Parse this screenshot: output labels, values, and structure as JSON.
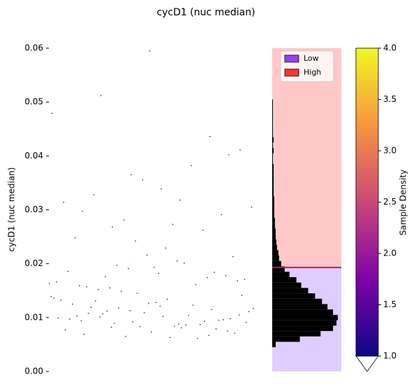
{
  "chart_data": [
    {
      "type": "strip",
      "title": "cycD1 (nuc median)",
      "ylabel": "cycD1 (nuc median)",
      "color": "#1a0a8c",
      "ylim": [
        0,
        0.06
      ],
      "yticks": [
        {
          "value": 0,
          "label": "0.00"
        },
        0.01,
        0.02,
        0.03,
        0.04,
        0.05,
        0.06
      ],
      "values": [
        0.0082,
        0.0105,
        0.0121,
        0.0094,
        0.0067,
        0.0113,
        0.0139,
        0.0088,
        0.0101,
        0.0075,
        0.0126,
        0.0097,
        0.0061,
        0.0118,
        0.0091,
        0.0134,
        0.0108,
        0.0079,
        0.0145,
        0.0099,
        0.0086,
        0.0112,
        0.0071,
        0.0128,
        0.0103,
        0.0093,
        0.0065,
        0.0117,
        0.0084,
        0.0131,
        0.0096,
        0.0109,
        0.0077,
        0.0123,
        0.0089,
        0.0141,
        0.0102,
        0.0069,
        0.0115,
        0.0092,
        0.0136,
        0.0081,
        0.0107,
        0.0098,
        0.0073,
        0.0125,
        0.0087,
        0.0149,
        0.0111,
        0.0063,
        0.0119,
        0.0095,
        0.0083,
        0.0132,
        0.0104,
        0.0155,
        0.0168,
        0.0182,
        0.0159,
        0.0174,
        0.0191,
        0.0163,
        0.0205,
        0.0152,
        0.0178,
        0.0216,
        0.0186,
        0.0161,
        0.0197,
        0.0171,
        0.0229,
        0.0157,
        0.0184,
        0.0242,
        0.0166,
        0.0201,
        0.0176,
        0.0213,
        0.0193,
        0.0248,
        0.0262,
        0.0281,
        0.0305,
        0.0273,
        0.0328,
        0.0291,
        0.0356,
        0.0314,
        0.0382,
        0.0268,
        0.0411,
        0.0339,
        0.0297,
        0.0436,
        0.0365,
        0.0479,
        0.0318,
        0.0512,
        0.0402,
        0.0595
      ]
    },
    {
      "type": "histogram",
      "color": "#000000",
      "xlim": [
        0,
        100
      ],
      "ylim": [
        0,
        0.06
      ],
      "threshold": 0.0193,
      "threshold_color": "#c8106e",
      "bins": [
        0.0045,
        0.0055,
        0.0065,
        0.0075,
        0.0085,
        0.0095,
        0.0105,
        0.0115,
        0.0125,
        0.0135,
        0.0145,
        0.0155,
        0.0165,
        0.0175,
        0.0185,
        0.0195,
        0.0205,
        0.0215,
        0.0225,
        0.0235,
        0.0245,
        0.0255,
        0.0265,
        0.0275,
        0.0285,
        0.0295,
        0.0305,
        0.0315,
        0.0325,
        0.0335,
        0.0345,
        0.0355,
        0.0365,
        0.0375,
        0.0385,
        0.0395,
        0.0405,
        0.0415,
        0.0425,
        0.0435,
        0.0445,
        0.0455,
        0.0465,
        0.0475,
        0.0485,
        0.0495,
        0.0505
      ],
      "counts": [
        5,
        40,
        70,
        88,
        93,
        95,
        88,
        80,
        72,
        62,
        52,
        42,
        35,
        25,
        18,
        13,
        10,
        9,
        7,
        6,
        5,
        5,
        4,
        4,
        3,
        3,
        3,
        3,
        2,
        2,
        2,
        2,
        2,
        2,
        1,
        1,
        2,
        1,
        2,
        1,
        1,
        1,
        1,
        1,
        1,
        1
      ],
      "legend": "upper right",
      "regions": [
        {
          "name": "Low",
          "color": "#9b3dff",
          "fill": "#e0ccff"
        },
        {
          "name": "High",
          "color": "#ff3333",
          "fill": "#ffc8c8"
        }
      ]
    },
    {
      "type": "colorbar",
      "label": "Sample Density",
      "colormap": "plasma",
      "extend": "min",
      "ylim": [
        1,
        4
      ],
      "yticks": [
        {
          "value": 1,
          "label": "1.0"
        },
        1.5,
        {
          "value": 2,
          "label": "2.0"
        },
        2.5,
        {
          "value": 3,
          "label": "3.0"
        },
        3.5,
        {
          "value": 4,
          "label": "4.0"
        }
      ]
    }
  ]
}
